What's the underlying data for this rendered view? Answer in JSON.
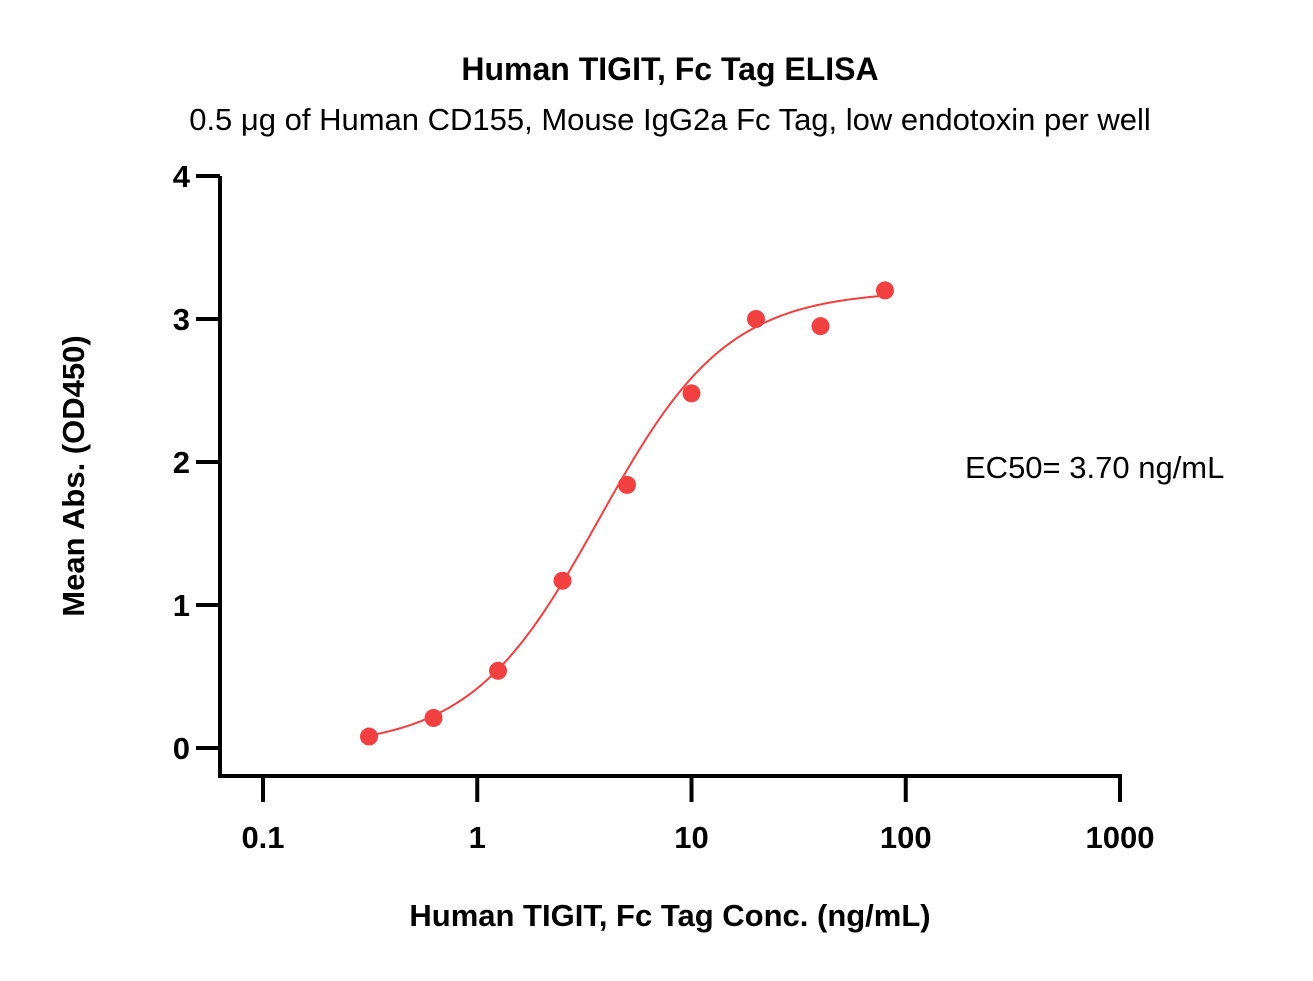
{
  "chart_data": {
    "type": "scatter",
    "title": "Human TIGIT, Fc Tag ELISA",
    "subtitle": "0.5 μg of Human CD155, Mouse IgG2a Fc Tag, low endotoxin per well",
    "xlabel": "Human TIGIT, Fc Tag Conc. (ng/mL)",
    "ylabel": "Mean Abs. (OD450)",
    "x_scale": "log",
    "xlim": [
      0.1,
      1000
    ],
    "ylim": [
      0,
      4
    ],
    "x_ticks": [
      0.1,
      1,
      10,
      100,
      1000
    ],
    "x_tick_labels": [
      "0.1",
      "1",
      "10",
      "100",
      "1000"
    ],
    "y_ticks": [
      0,
      1,
      2,
      3,
      4
    ],
    "y_tick_labels": [
      "0",
      "1",
      "2",
      "3",
      "4"
    ],
    "grid": false,
    "color": "#f04040",
    "series": [
      {
        "x": [
          0.3125,
          0.625,
          1.25,
          2.5,
          5,
          10,
          20,
          40,
          80
        ],
        "y": [
          0.08,
          0.21,
          0.54,
          1.17,
          1.84,
          2.48,
          3.0,
          2.95,
          3.2
        ]
      }
    ],
    "fit": {
      "model": "4PL",
      "bottom": 0.0,
      "top": 3.2,
      "ec50": 3.7,
      "hill": 1.45,
      "x_range": [
        0.3125,
        80
      ]
    },
    "annotation": "EC50= 3.70 ng/mL"
  }
}
